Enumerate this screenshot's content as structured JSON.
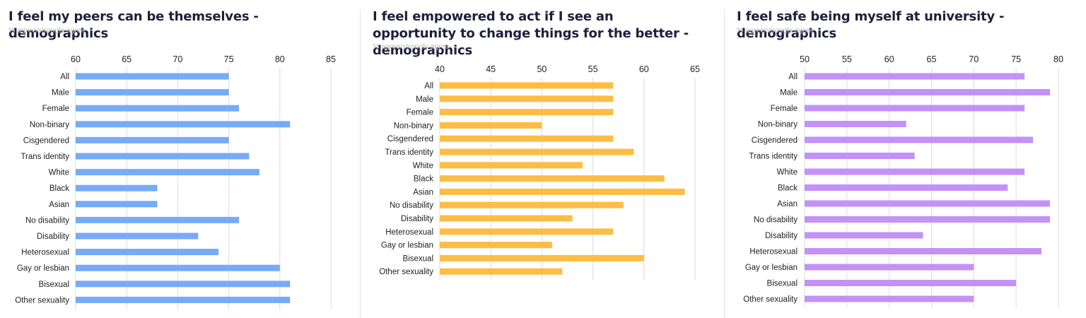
{
  "colors": {
    "panel1": "#77aaf7",
    "panel2": "#fdbd45",
    "panel3": "#c391f8",
    "grid": "#dcdcdc"
  },
  "panels": [
    {
      "title": "I feel my peers can be themselves - demographics",
      "subtitle": "% agree/strongly agree"
    },
    {
      "title": "I feel empowered to act if I see an opportunity to change things for the better - demographics",
      "subtitle": "% agree/strongly agree"
    },
    {
      "title": "I feel safe being myself at university - demographics",
      "subtitle": "% agree/strongly agree"
    }
  ],
  "chart_data": [
    {
      "type": "bar",
      "title": "I feel my peers can be themselves - demographics",
      "subtitle": "% agree/strongly agree",
      "orientation": "horizontal",
      "xlim": [
        60,
        85
      ],
      "ticks": [
        60,
        65,
        70,
        75,
        80,
        85
      ],
      "grid": true,
      "categories": [
        "All",
        "Male",
        "Female",
        "Non-binary",
        "Cisgendered",
        "Trans identity",
        "White",
        "Black",
        "Asian",
        "No disability",
        "Disability",
        "Heterosexual",
        "Gay or lesbian",
        "Bisexual",
        "Other sexuality"
      ],
      "values": [
        75,
        75,
        76,
        81,
        75,
        77,
        78,
        68,
        68,
        76,
        72,
        74,
        80,
        81,
        81
      ],
      "color": "#77aaf7"
    },
    {
      "type": "bar",
      "title": "I feel empowered to act if I see an opportunity to change things for the better - demographics",
      "subtitle": "% agree/strongly agree",
      "orientation": "horizontal",
      "xlim": [
        40,
        65
      ],
      "ticks": [
        40,
        45,
        50,
        55,
        60,
        65
      ],
      "grid": true,
      "categories": [
        "All",
        "Male",
        "Female",
        "Non-binary",
        "Cisgendered",
        "Trans identity",
        "White",
        "Black",
        "Asian",
        "No disability",
        "Disability",
        "Heterosexual",
        "Gay or lesbian",
        "Bisexual",
        "Other sexuality"
      ],
      "values": [
        57,
        57,
        57,
        50,
        57,
        59,
        54,
        62,
        64,
        58,
        53,
        57,
        51,
        60,
        52
      ],
      "color": "#fdbd45"
    },
    {
      "type": "bar",
      "title": "I feel safe being myself at university - demographics",
      "subtitle": "% agree/strongly agree",
      "orientation": "horizontal",
      "xlim": [
        50,
        80
      ],
      "ticks": [
        50,
        55,
        60,
        65,
        70,
        75,
        80
      ],
      "grid": true,
      "categories": [
        "All",
        "Male",
        "Female",
        "Non-binary",
        "Cisgendered",
        "Trans identity",
        "White",
        "Black",
        "Asian",
        "No disability",
        "Disability",
        "Heterosexual",
        "Gay or lesbian",
        "Bisexual",
        "Other sexuality"
      ],
      "values": [
        76,
        79,
        76,
        62,
        77,
        63,
        76,
        74,
        79,
        79,
        64,
        78,
        70,
        75,
        70
      ],
      "color": "#c391f8"
    }
  ]
}
